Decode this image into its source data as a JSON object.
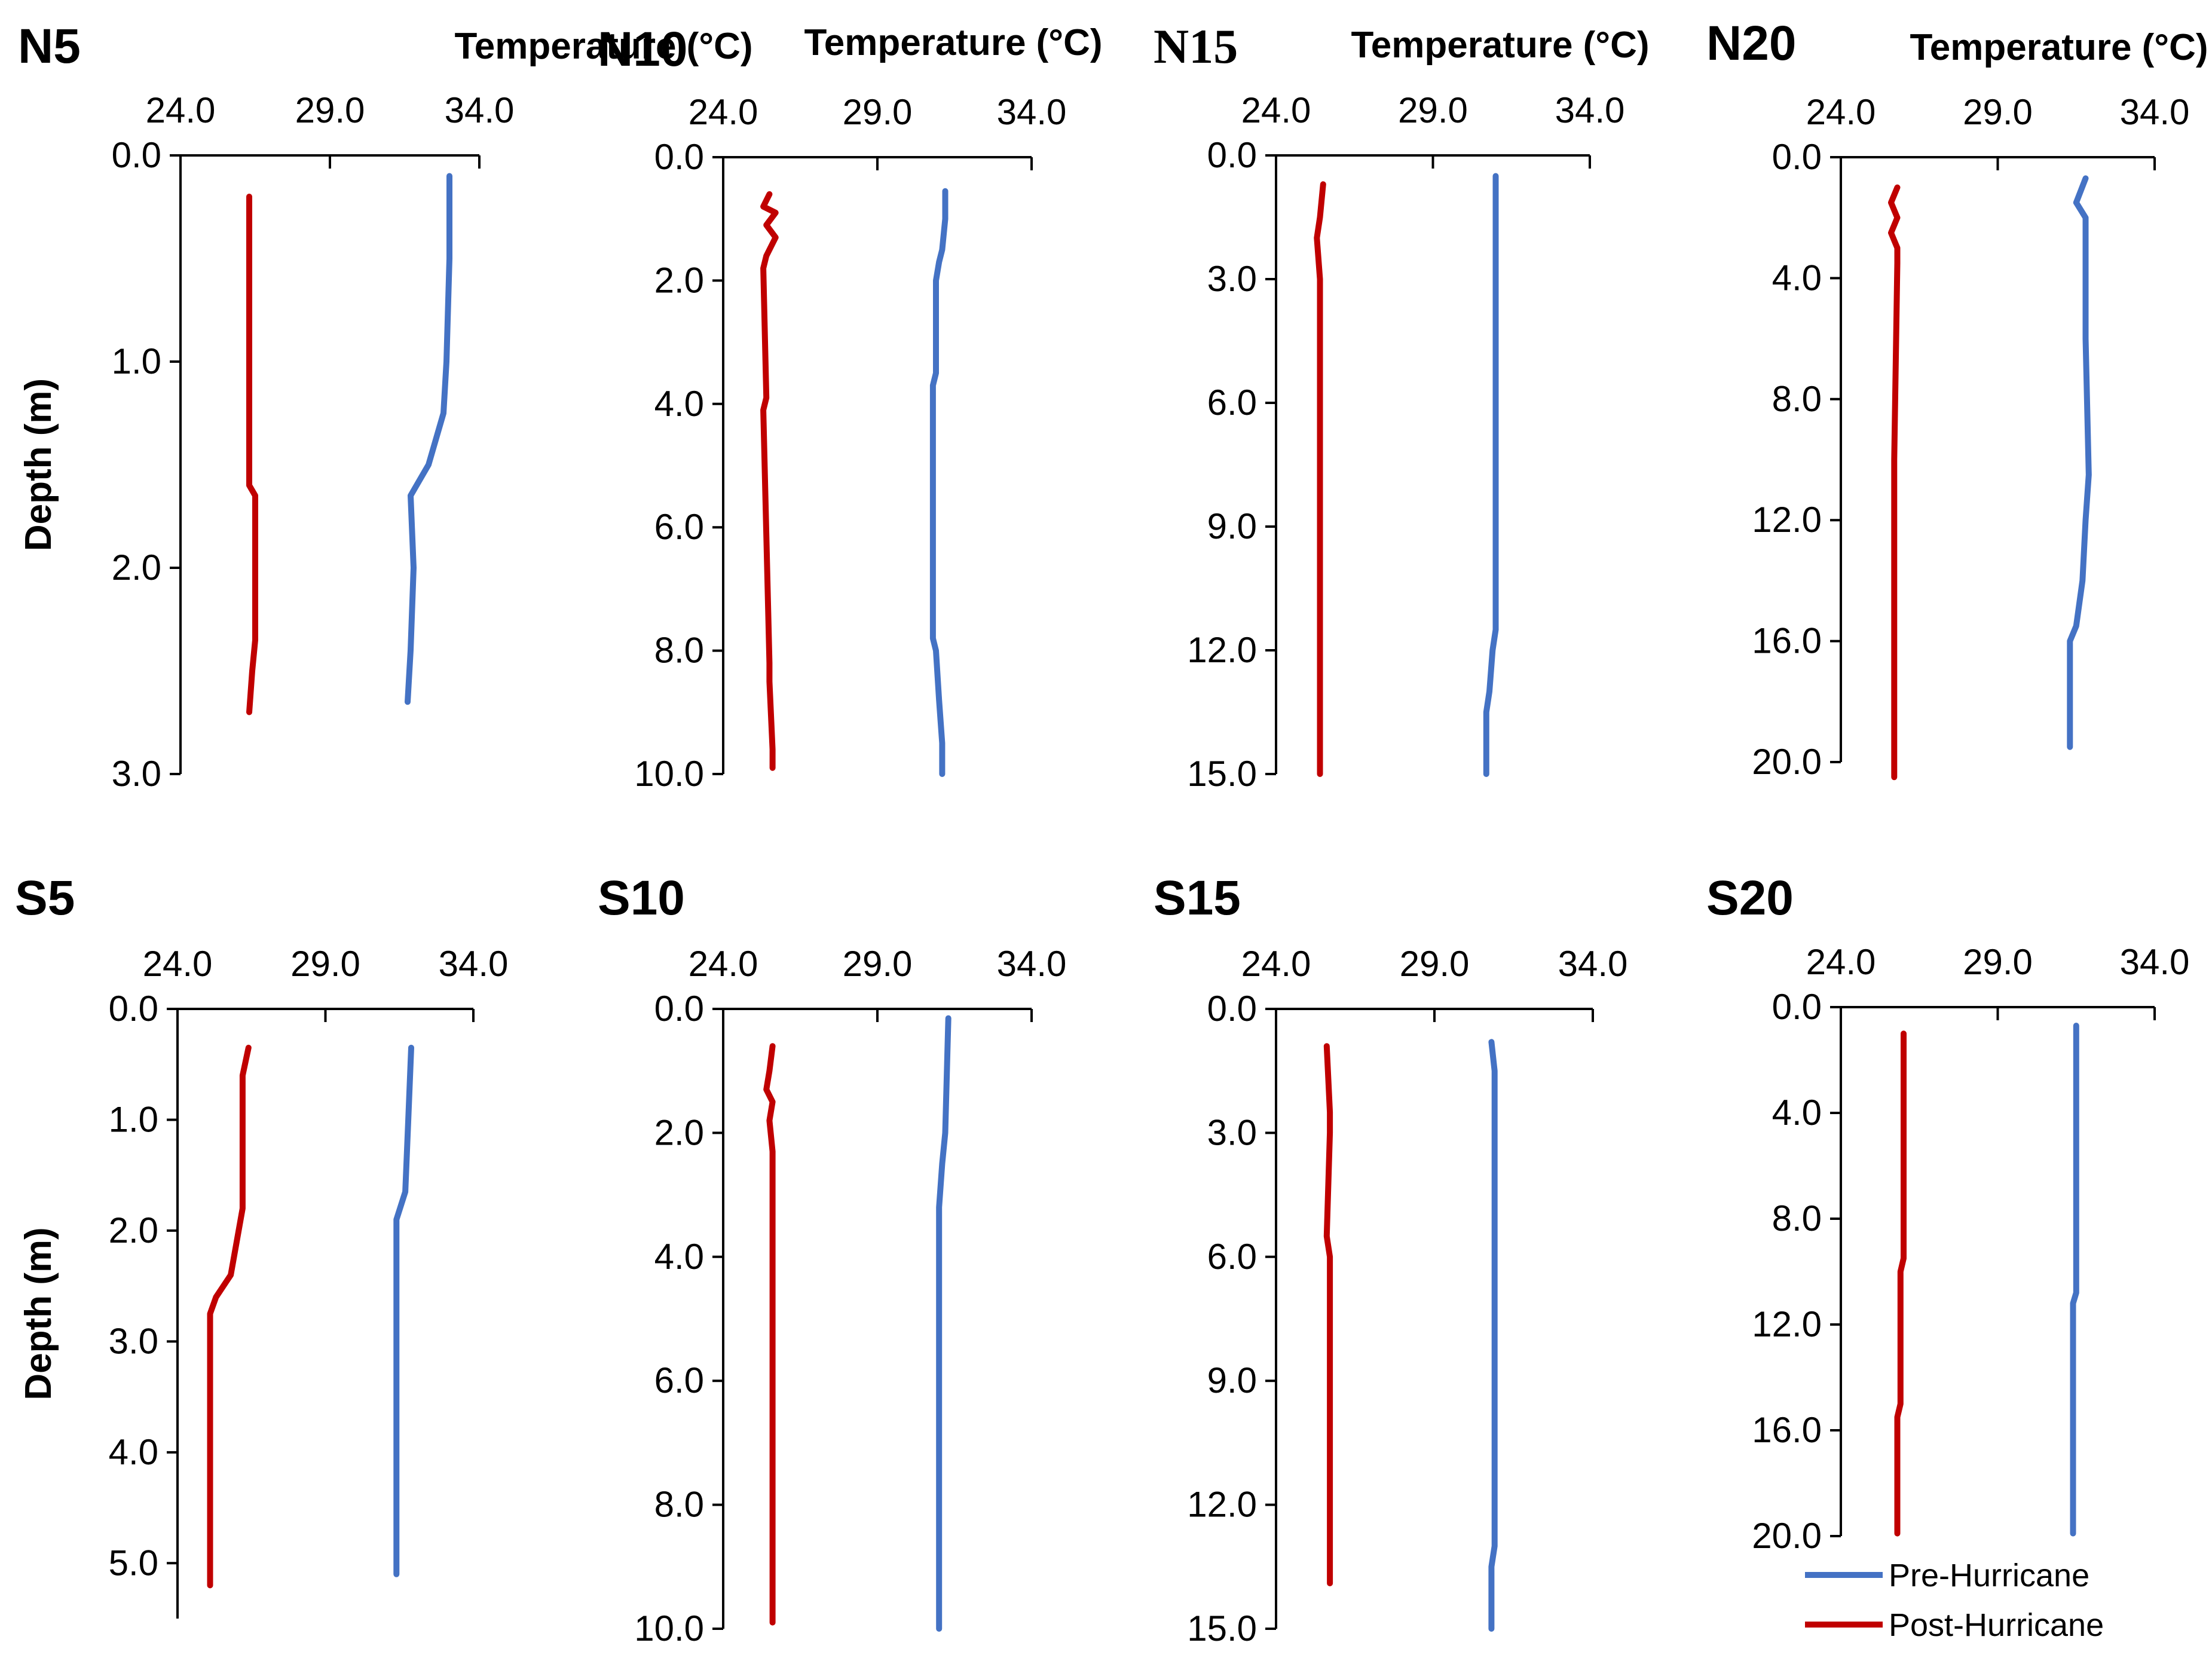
{
  "figure": {
    "xlabel": "Temperature (°C)",
    "ylabel": "Depth (m)"
  },
  "colors": {
    "pre": "#4472c4",
    "post": "#c00000",
    "axis": "#000000"
  },
  "legend": [
    {
      "key": "pre",
      "label": "Pre-Hurricane"
    },
    {
      "key": "post",
      "label": "Post-Hurricane"
    }
  ],
  "chart_data": [
    {
      "type": "line",
      "title": "N5",
      "xlabel": "Temperature (°C)",
      "ylabel": "Depth (m)",
      "xlim": [
        24,
        34
      ],
      "xticks": [
        "24.0",
        "29.0",
        "34.0"
      ],
      "ylim": [
        0,
        3
      ],
      "yticks": [
        "0.0",
        "1.0",
        "2.0",
        "3.0"
      ],
      "y_inverted": true,
      "series": [
        {
          "name": "Pre-Hurricane",
          "temp": [
            33.0,
            33.0,
            32.9,
            32.8,
            32.3,
            31.7,
            31.8,
            31.7,
            31.6
          ],
          "depth": [
            0.1,
            0.5,
            1.0,
            1.25,
            1.5,
            1.65,
            2.0,
            2.4,
            2.65
          ]
        },
        {
          "name": "Post-Hurricane",
          "temp": [
            26.3,
            26.3,
            26.3,
            26.5,
            26.5,
            26.4,
            26.3
          ],
          "depth": [
            0.2,
            1.0,
            1.6,
            1.65,
            2.35,
            2.5,
            2.7
          ]
        }
      ]
    },
    {
      "type": "line",
      "title": "N10",
      "xlabel": "Temperature (°C)",
      "ylabel": "",
      "xlim": [
        24,
        34
      ],
      "xticks": [
        "24.0",
        "29.0",
        "34.0"
      ],
      "ylim": [
        0,
        10
      ],
      "yticks": [
        "0.0",
        "2.0",
        "4.0",
        "6.0",
        "8.0",
        "10.0"
      ],
      "y_inverted": true,
      "series": [
        {
          "name": "Pre-Hurricane",
          "temp": [
            31.2,
            31.2,
            31.1,
            31.0,
            30.9,
            30.9,
            30.8,
            30.8,
            30.9,
            31.0,
            31.1,
            31.1
          ],
          "depth": [
            0.55,
            1.0,
            1.5,
            1.7,
            2.0,
            3.5,
            3.7,
            7.8,
            8.0,
            8.8,
            9.5,
            10.0
          ]
        },
        {
          "name": "Post-Hurricane",
          "temp": [
            25.5,
            25.3,
            25.7,
            25.4,
            25.7,
            25.4,
            25.3,
            25.4,
            25.3,
            25.5,
            25.5,
            25.6,
            25.6
          ],
          "depth": [
            0.6,
            0.8,
            0.9,
            1.1,
            1.3,
            1.6,
            1.8,
            3.9,
            4.1,
            8.2,
            8.5,
            9.6,
            9.9
          ]
        }
      ]
    },
    {
      "type": "line",
      "title": "N15",
      "xlabel": "Temperature (°C)",
      "ylabel": "",
      "xlim": [
        24,
        34
      ],
      "xticks": [
        "24.0",
        "29.0",
        "34.0"
      ],
      "ylim": [
        0,
        15
      ],
      "yticks": [
        "0.0",
        "3.0",
        "6.0",
        "9.0",
        "12.0",
        "15.0"
      ],
      "y_inverted": true,
      "series": [
        {
          "name": "Pre-Hurricane",
          "temp": [
            31.0,
            31.0,
            31.0,
            31.0,
            30.9,
            30.8,
            30.7,
            30.7
          ],
          "depth": [
            0.5,
            3.0,
            9.0,
            11.5,
            12.0,
            13.0,
            13.5,
            15.0
          ]
        },
        {
          "name": "Post-Hurricane",
          "temp": [
            25.5,
            25.4,
            25.3,
            25.4,
            25.4,
            25.4
          ],
          "depth": [
            0.7,
            1.5,
            2.0,
            3.0,
            10.0,
            15.0
          ]
        }
      ]
    },
    {
      "type": "line",
      "title": "N20",
      "xlabel": "Temperature (°C)",
      "ylabel": "",
      "xlim": [
        24,
        34
      ],
      "xticks": [
        "24.0",
        "29.0",
        "34.0"
      ],
      "ylim": [
        0,
        20
      ],
      "yticks": [
        "0.0",
        "4.0",
        "8.0",
        "12.0",
        "16.0",
        "20.0"
      ],
      "y_inverted": true,
      "series": [
        {
          "name": "Pre-Hurricane",
          "temp": [
            31.8,
            31.5,
            31.8,
            31.8,
            31.9,
            31.8,
            31.7,
            31.5,
            31.3,
            31.3
          ],
          "depth": [
            0.7,
            1.5,
            2.0,
            6.0,
            10.5,
            12.0,
            14.0,
            15.5,
            16.0,
            19.5
          ]
        },
        {
          "name": "Post-Hurricane",
          "temp": [
            25.8,
            25.6,
            25.8,
            25.6,
            25.8,
            25.8,
            25.7,
            25.7
          ],
          "depth": [
            1.0,
            1.5,
            2.0,
            2.5,
            3.0,
            3.5,
            10.0,
            20.5
          ]
        }
      ]
    },
    {
      "type": "line",
      "title": "S5",
      "xlabel": "",
      "ylabel": "Depth (m)",
      "xlim": [
        24,
        34
      ],
      "xticks": [
        "24.0",
        "29.0",
        "34.0"
      ],
      "ylim": [
        0,
        5.5
      ],
      "yticks": [
        "0.0",
        "1.0",
        "2.0",
        "3.0",
        "4.0",
        "5.0"
      ],
      "y_inverted": true,
      "series": [
        {
          "name": "Pre-Hurricane",
          "temp": [
            31.9,
            31.8,
            31.7,
            31.4,
            31.4
          ],
          "depth": [
            0.35,
            1.0,
            1.65,
            1.9,
            5.1
          ]
        },
        {
          "name": "Post-Hurricane",
          "temp": [
            26.4,
            26.2,
            26.2,
            26.0,
            25.8,
            25.3,
            25.1,
            25.1
          ],
          "depth": [
            0.35,
            0.6,
            1.8,
            2.1,
            2.4,
            2.6,
            2.75,
            5.2
          ]
        }
      ]
    },
    {
      "type": "line",
      "title": "S10",
      "xlabel": "",
      "ylabel": "",
      "xlim": [
        24,
        34
      ],
      "xticks": [
        "24.0",
        "29.0",
        "34.0"
      ],
      "ylim": [
        0,
        10
      ],
      "yticks": [
        "0.0",
        "2.0",
        "4.0",
        "6.0",
        "8.0",
        "10.0"
      ],
      "y_inverted": true,
      "series": [
        {
          "name": "Pre-Hurricane",
          "temp": [
            31.3,
            31.2,
            31.1,
            31.0,
            31.0
          ],
          "depth": [
            0.15,
            2.0,
            2.5,
            3.2,
            10.0
          ]
        },
        {
          "name": "Post-Hurricane",
          "temp": [
            25.6,
            25.5,
            25.4,
            25.6,
            25.5,
            25.6,
            25.6
          ],
          "depth": [
            0.6,
            1.0,
            1.3,
            1.5,
            1.8,
            2.3,
            9.9
          ]
        }
      ]
    },
    {
      "type": "line",
      "title": "S15",
      "xlabel": "",
      "ylabel": "",
      "xlim": [
        24,
        34
      ],
      "xticks": [
        "24.0",
        "29.0",
        "34.0"
      ],
      "ylim": [
        0,
        15
      ],
      "yticks": [
        "0.0",
        "3.0",
        "6.0",
        "9.0",
        "12.0",
        "15.0"
      ],
      "y_inverted": true,
      "series": [
        {
          "name": "Pre-Hurricane",
          "temp": [
            30.8,
            30.9,
            30.9,
            30.9,
            30.8,
            30.8
          ],
          "depth": [
            0.8,
            1.5,
            3.0,
            13.0,
            13.5,
            15.0
          ]
        },
        {
          "name": "Post-Hurricane",
          "temp": [
            25.6,
            25.7,
            25.7,
            25.6,
            25.7,
            25.7
          ],
          "depth": [
            0.9,
            2.5,
            3.0,
            5.5,
            6.0,
            13.9
          ]
        }
      ]
    },
    {
      "type": "line",
      "title": "S20",
      "xlabel": "",
      "ylabel": "",
      "xlim": [
        24,
        34
      ],
      "xticks": [
        "24.0",
        "29.0",
        "34.0"
      ],
      "ylim": [
        0,
        20
      ],
      "yticks": [
        "0.0",
        "4.0",
        "8.0",
        "12.0",
        "16.0",
        "20.0"
      ],
      "y_inverted": true,
      "series": [
        {
          "name": "Pre-Hurricane",
          "temp": [
            31.5,
            31.5,
            31.4,
            31.4
          ],
          "depth": [
            0.7,
            10.8,
            11.2,
            19.9
          ]
        },
        {
          "name": "Post-Hurricane",
          "temp": [
            26.0,
            26.0,
            25.9,
            25.9,
            25.8,
            25.8
          ],
          "depth": [
            1.0,
            9.5,
            10.0,
            15.0,
            15.5,
            19.9
          ]
        }
      ]
    }
  ]
}
